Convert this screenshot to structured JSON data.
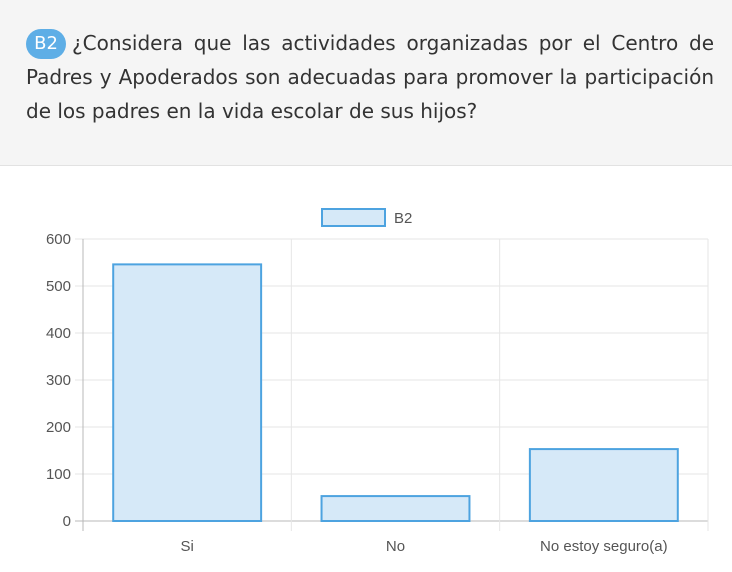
{
  "question": {
    "badge": "B2",
    "text": "¿Considera que las actividades organizadas por el Centro de Padres y Apoderados son adecuadas para promover la participación de los padres en la vida escolar de sus hijos?"
  },
  "colors": {
    "badge": "#5eaee6",
    "bar_fill": "#d6e9f8",
    "bar_stroke": "#4da3e0",
    "panel_bg": "#f5f5f5"
  },
  "chart_data": {
    "type": "bar",
    "categories": [
      "Si",
      "No",
      "No estoy seguro(a)"
    ],
    "series": [
      {
        "name": "B2",
        "values": [
          546,
          53,
          153
        ]
      }
    ],
    "ylim": [
      0,
      600
    ],
    "yticks": [
      0,
      100,
      200,
      300,
      400,
      500,
      600
    ],
    "grid": true,
    "legend": "top-center"
  }
}
